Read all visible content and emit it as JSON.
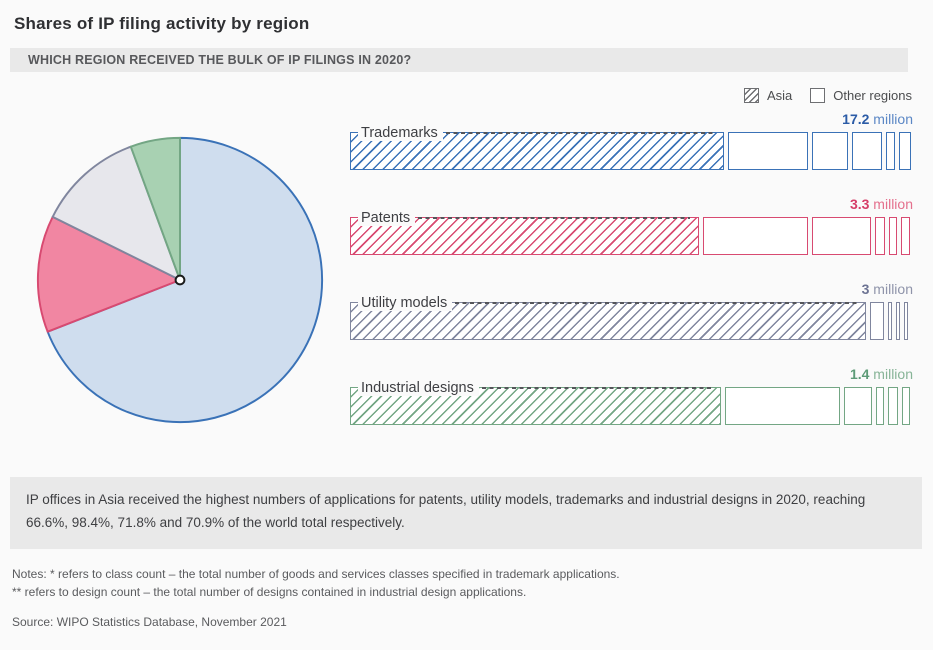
{
  "header": {
    "title": "Shares of IP filing activity by region",
    "subtitle": "WHICH REGION RECEIVED THE BULK OF IP FILINGS IN 2020?"
  },
  "legend": {
    "asia_label": "Asia",
    "other_label": "Other regions"
  },
  "chart_data": {
    "type": "pie+bar",
    "year": "2020",
    "unit": "million",
    "pie": {
      "order": [
        "Trademarks",
        "Patents",
        "Utility models",
        "Industrial designs"
      ],
      "values": [
        17.2,
        3.3,
        3.0,
        1.4
      ],
      "start": "12 o'clock, clockwise"
    },
    "rows": [
      {
        "label": "Trademarks",
        "value": "17.2",
        "value_num": 17.2,
        "unit": "million",
        "asia_share_pct": 71.8,
        "colors": {
          "border": "#3a72b7",
          "num": "#2b5ba6",
          "unit": "#5b87c5",
          "pie_fill": "#cfddee"
        },
        "asia_segment_pct": 66.4,
        "other_segments_pct": [
          14.3,
          6.4,
          5.3,
          1.65,
          2.0
        ]
      },
      {
        "label": "Patents",
        "value": "3.3",
        "value_num": 3.3,
        "unit": "million",
        "asia_share_pct": 66.6,
        "colors": {
          "border": "#d84a71",
          "num": "#d63e68",
          "unit": "#e4708d",
          "pie_fill": "#f186a2"
        },
        "asia_segment_pct": 62.0,
        "other_segments_pct": [
          18.6,
          10.6,
          1.65,
          1.5,
          1.5
        ]
      },
      {
        "label": "Utility models",
        "value": "3",
        "value_num": 3.0,
        "unit": "million",
        "asia_share_pct": 98.4,
        "colors": {
          "border": "#80869e",
          "num": "#6c7393",
          "unit": "#8f94aa",
          "pie_fill": "#e7e7ec"
        },
        "asia_segment_pct": 91.7,
        "other_segments_pct": [
          2.4,
          0.75,
          0.75,
          0.75
        ]
      },
      {
        "label": "Industrial designs",
        "value": "1.4",
        "value_num": 1.4,
        "unit": "million",
        "asia_share_pct": 70.9,
        "colors": {
          "border": "#73a684",
          "num": "#5d9b77",
          "unit": "#87b497",
          "pie_fill": "#a8d1b2"
        },
        "asia_segment_pct": 65.9,
        "other_segments_pct": [
          20.4,
          5.0,
          1.5,
          1.65,
          1.5
        ]
      }
    ]
  },
  "summary": "IP offices in Asia received the highest numbers of applications for patents, utility models, trademarks and industrial designs in 2020, reaching 66.6%, 98.4%, 71.8% and 70.9% of the world total respectively.",
  "notes": {
    "line1": "Notes: * refers to class count – the total number of goods and services classes specified in trademark applications.",
    "line2": "** refers to design count – the total number of designs contained in industrial design applications."
  },
  "source": "Source: WIPO Statistics Database, November 2021"
}
